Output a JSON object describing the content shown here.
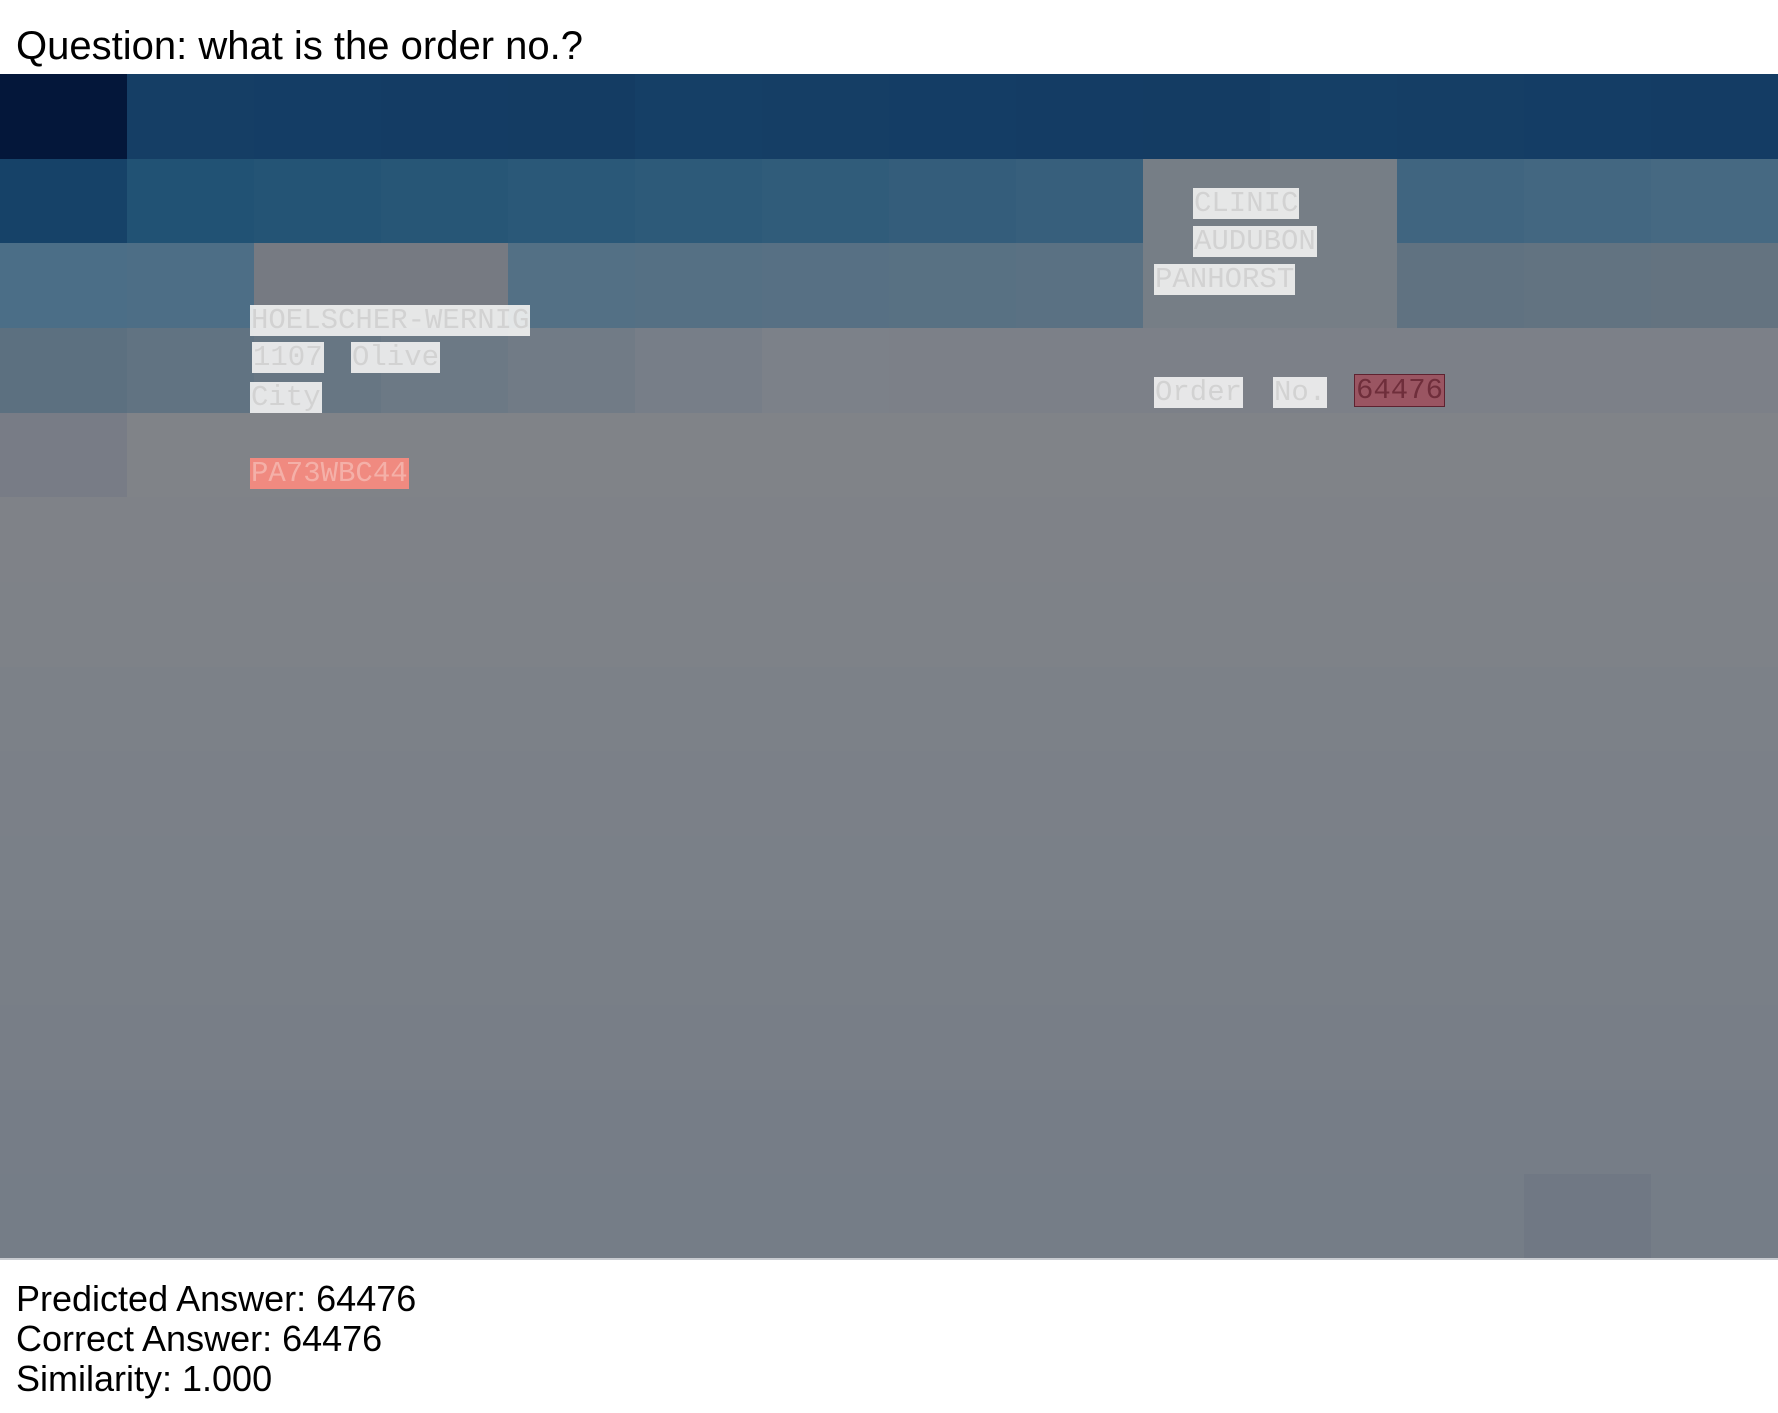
{
  "question": "Question: what is the order no.?",
  "document_tokens": {
    "name": "HOELSCHER-WERNIG",
    "street_num": "1107",
    "street": "Olive",
    "city": "City",
    "code": "PA73WBC44",
    "clinic": "CLINIC",
    "audubon": "AUDUBON",
    "panhorst": "PANHORST",
    "order": "Order",
    "no": "No.",
    "order_value": "64476"
  },
  "results": {
    "predicted": "Predicted Answer: 64476",
    "correct": "Correct Answer: 64476",
    "similarity": "Similarity: 1.000"
  },
  "heatmap_colors": {
    "darkest": "#04173a",
    "header": "#153f66",
    "base": "#7c8189"
  }
}
